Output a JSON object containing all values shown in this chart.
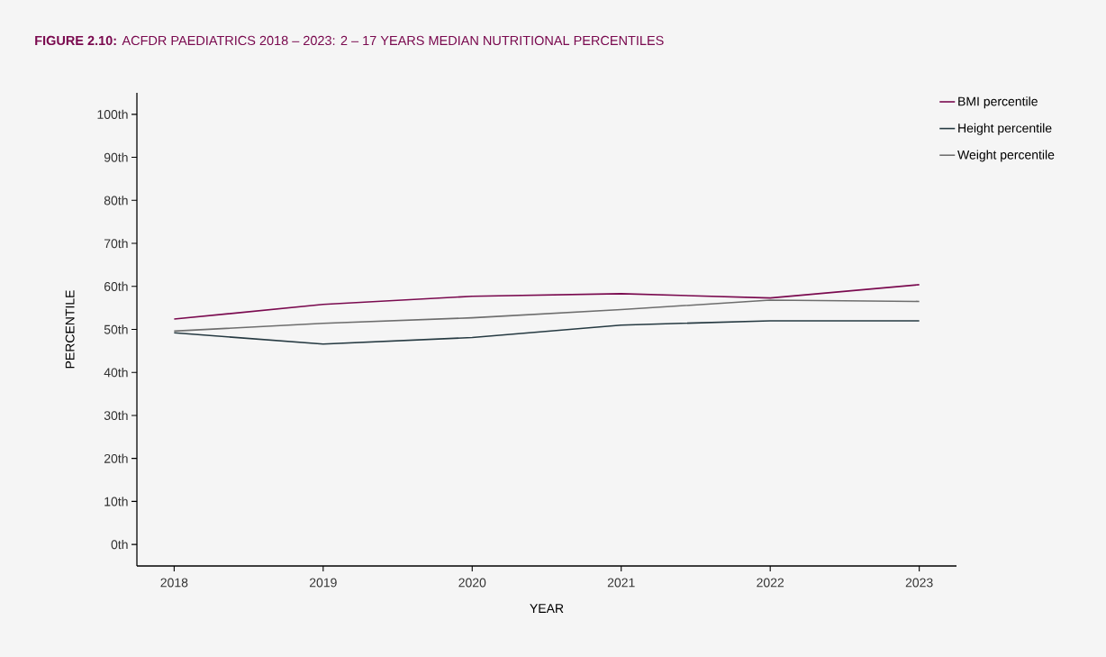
{
  "chart_data": {
    "type": "line",
    "title": "**FIGURE 2.10:** ACFDR PAEDIATRICS 2018 – 2023: 2 – 17 YEARS MEDIAN NUTRITIONAL PERCENTILES",
    "xlabel": "YEAR",
    "ylabel": "PERCENTILE",
    "x": [
      2018,
      2019,
      2020,
      2021,
      2022,
      2023
    ],
    "series": [
      {
        "name": "BMI percentile",
        "color": "#7a0a4f",
        "values": [
          52.4,
          55.8,
          57.7,
          58.3,
          57.3,
          60.4
        ]
      },
      {
        "name": "Height percentile",
        "color": "#263a42",
        "values": [
          49.2,
          46.6,
          48.1,
          51.0,
          52.0,
          52.0
        ]
      },
      {
        "name": "Weight percentile",
        "color": "#6e6e6e",
        "values": [
          49.6,
          51.4,
          52.7,
          54.6,
          56.8,
          56.5
        ]
      }
    ],
    "xlim": [
      2017.75,
      2023.25
    ],
    "xticks": [
      2018,
      2019,
      2020,
      2021,
      2022,
      2023
    ],
    "ylim": [
      -5,
      105
    ],
    "yticks": [
      {
        "value": 0,
        "label": "0th"
      },
      {
        "value": 10,
        "label": "10th"
      },
      {
        "value": 20,
        "label": "20th"
      },
      {
        "value": 30,
        "label": "30th"
      },
      {
        "value": 40,
        "label": "40th"
      },
      {
        "value": 50,
        "label": "50th"
      },
      {
        "value": 60,
        "label": "60th"
      },
      {
        "value": 70,
        "label": "70th"
      },
      {
        "value": 80,
        "label": "80th"
      },
      {
        "value": 90,
        "label": "90th"
      },
      {
        "value": 100,
        "label": "100th"
      }
    ],
    "legend": "top right",
    "marker": "none",
    "line_style": "solid"
  }
}
